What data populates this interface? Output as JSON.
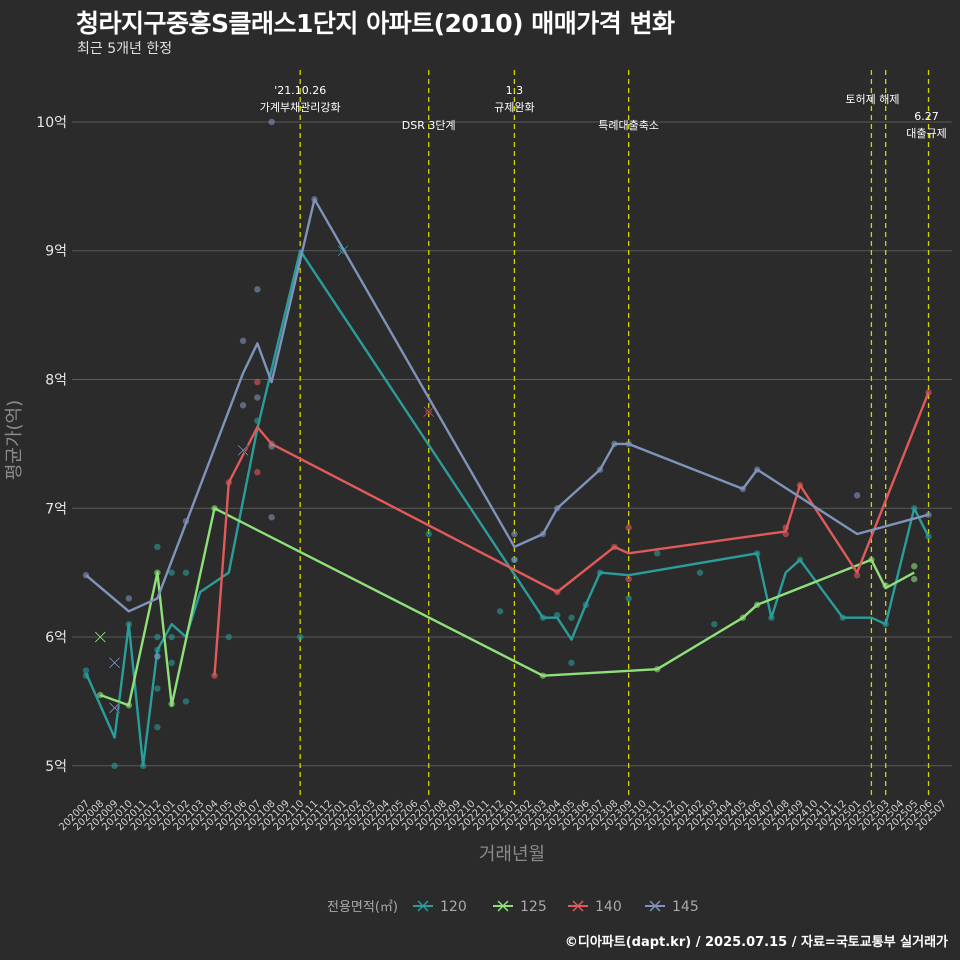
{
  "title": "청라지구중흥S클래스1단지 아파트(2010) 매매가격 변화",
  "subtitle": "최근 5개년 한정",
  "footer": "©디아파트(dapt.kr) / 2025.07.15 / 자료=국토교통부 실거래가",
  "colors": {
    "background": "#2b2b2b",
    "grid": "#5a5a5a",
    "event_line": "#d4d400",
    "s120": "#2a9d9a",
    "s125": "#8ee07a",
    "s140": "#e05a5a",
    "s145": "#7f93bb"
  },
  "chart_data": {
    "type": "line",
    "xlabel": "거래년월",
    "ylabel": "평균가(억)",
    "ylim": [
      4.75,
      10.45
    ],
    "y_ticks": [
      5,
      6,
      7,
      8,
      9,
      10
    ],
    "y_tick_labels": [
      "5억",
      "6억",
      "7억",
      "8억",
      "9억",
      "10억"
    ],
    "x": [
      "202007",
      "202008",
      "202009",
      "202010",
      "202011",
      "202012",
      "202101",
      "202102",
      "202103",
      "202104",
      "202105",
      "202106",
      "202107",
      "202108",
      "202109",
      "202110",
      "202111",
      "202112",
      "202201",
      "202202",
      "202203",
      "202204",
      "202205",
      "202206",
      "202207",
      "202208",
      "202209",
      "202210",
      "202211",
      "202212",
      "202301",
      "202302",
      "202303",
      "202304",
      "202305",
      "202306",
      "202307",
      "202308",
      "202309",
      "202310",
      "202311",
      "202312",
      "202401",
      "202402",
      "202403",
      "202404",
      "202405",
      "202406",
      "202407",
      "202408",
      "202409",
      "202410",
      "202411",
      "202412",
      "202501",
      "202502",
      "202503",
      "202504",
      "202505",
      "202506",
      "202507"
    ],
    "legend": {
      "title": "전용면적(㎡)",
      "placement": "bottom",
      "items": [
        "120",
        "125",
        "140",
        "145"
      ]
    },
    "events": [
      {
        "x": "202110",
        "lines": [
          "'21.10.26",
          "가계부채관리강화"
        ]
      },
      {
        "x": "202207",
        "lines": [
          "DSR 3단계"
        ]
      },
      {
        "x": "202301",
        "lines": [
          "1.3",
          "규제완화"
        ]
      },
      {
        "x": "202309",
        "lines": [
          "특례대출축소"
        ]
      },
      {
        "x": "202502",
        "lines": [
          "토허제 해제"
        ]
      },
      {
        "x": "202503",
        "lines": [
          ""
        ]
      },
      {
        "x": "202506",
        "lines": [
          "6.27",
          "대출규제"
        ]
      }
    ],
    "series": [
      {
        "name": "120",
        "color_key": "s120",
        "line": [
          [
            "202007",
            5.72
          ],
          [
            "202009",
            5.22
          ],
          [
            "202010",
            6.1
          ],
          [
            "202011",
            5.0
          ],
          [
            "202012",
            5.9
          ],
          [
            "202101",
            6.1
          ],
          [
            "202102",
            6.0
          ],
          [
            "202103",
            6.35
          ],
          [
            "202105",
            6.5
          ],
          [
            "202107",
            7.62
          ],
          [
            "202110",
            9.0
          ],
          [
            "202303",
            6.15
          ],
          [
            "202304",
            6.15
          ],
          [
            "202305",
            5.98
          ],
          [
            "202306",
            6.25
          ],
          [
            "202307",
            6.5
          ],
          [
            "202309",
            6.48
          ],
          [
            "202406",
            6.65
          ],
          [
            "202407",
            6.15
          ],
          [
            "202408",
            6.5
          ],
          [
            "202409",
            6.6
          ],
          [
            "202412",
            6.15
          ],
          [
            "202502",
            6.15
          ],
          [
            "202503",
            6.1
          ],
          [
            "202505",
            7.0
          ],
          [
            "202506",
            6.78
          ]
        ],
        "points": [
          [
            "202007",
            5.74
          ],
          [
            "202007",
            5.7
          ],
          [
            "202009",
            5.0
          ],
          [
            "202010",
            6.1
          ],
          [
            "202011",
            5.0
          ],
          [
            "202012",
            5.3
          ],
          [
            "202012",
            5.6
          ],
          [
            "202012",
            5.85
          ],
          [
            "202012",
            5.9
          ],
          [
            "202012",
            6.0
          ],
          [
            "202012",
            6.7
          ],
          [
            "202101",
            5.8
          ],
          [
            "202101",
            6.0
          ],
          [
            "202101",
            6.5
          ],
          [
            "202102",
            5.5
          ],
          [
            "202102",
            6.5
          ],
          [
            "202105",
            6.0
          ],
          [
            "202107",
            7.68
          ],
          [
            "202110",
            6.0
          ],
          [
            "202201",
            9.0
          ],
          [
            "202207",
            6.8
          ],
          [
            "202212",
            6.2
          ],
          [
            "202301",
            6.6
          ],
          [
            "202303",
            6.15
          ],
          [
            "202304",
            6.17
          ],
          [
            "202305",
            5.8
          ],
          [
            "202305",
            6.15
          ],
          [
            "202306",
            6.25
          ],
          [
            "202307",
            6.5
          ],
          [
            "202309",
            6.3
          ],
          [
            "202311",
            6.65
          ],
          [
            "202402",
            6.5
          ],
          [
            "202403",
            6.1
          ],
          [
            "202406",
            6.65
          ],
          [
            "202407",
            6.15
          ],
          [
            "202409",
            6.6
          ],
          [
            "202412",
            6.15
          ],
          [
            "202503",
            6.1
          ],
          [
            "202505",
            7.0
          ],
          [
            "202506",
            6.78
          ]
        ],
        "crosses": [
          [
            "202008",
            6.0
          ],
          [
            "202201",
            9.0
          ]
        ]
      },
      {
        "name": "125",
        "color_key": "s125",
        "line": [
          [
            "202008",
            5.55
          ],
          [
            "202010",
            5.47
          ],
          [
            "202012",
            6.5
          ],
          [
            "202101",
            5.47
          ],
          [
            "202104",
            7.0
          ],
          [
            "202303",
            5.7
          ],
          [
            "202311",
            5.75
          ],
          [
            "202405",
            6.15
          ],
          [
            "202406",
            6.25
          ],
          [
            "202502",
            6.6
          ],
          [
            "202503",
            6.38
          ],
          [
            "202505",
            6.5
          ]
        ],
        "points": [
          [
            "202008",
            5.55
          ],
          [
            "202010",
            5.47
          ],
          [
            "202012",
            6.5
          ],
          [
            "202101",
            5.48
          ],
          [
            "202104",
            7.0
          ],
          [
            "202303",
            5.7
          ],
          [
            "202311",
            5.75
          ],
          [
            "202405",
            6.15
          ],
          [
            "202406",
            6.25
          ],
          [
            "202502",
            6.6
          ],
          [
            "202503",
            6.4
          ],
          [
            "202505",
            6.45
          ],
          [
            "202505",
            6.55
          ]
        ],
        "crosses": [
          [
            "202008",
            6.0
          ],
          [
            "202009",
            5.8
          ]
        ]
      },
      {
        "name": "140",
        "color_key": "s140",
        "line": [
          [
            "202104",
            5.7
          ],
          [
            "202105",
            7.2
          ],
          [
            "202107",
            7.63
          ],
          [
            "202108",
            7.5
          ],
          [
            "202304",
            6.35
          ],
          [
            "202308",
            6.7
          ],
          [
            "202309",
            6.65
          ],
          [
            "202408",
            6.82
          ],
          [
            "202409",
            7.18
          ],
          [
            "202501",
            6.5
          ],
          [
            "202506",
            7.9
          ]
        ],
        "points": [
          [
            "202104",
            5.7
          ],
          [
            "202105",
            7.2
          ],
          [
            "202107",
            7.28
          ],
          [
            "202107",
            7.98
          ],
          [
            "202108",
            7.5
          ],
          [
            "202207",
            7.75
          ],
          [
            "202304",
            6.35
          ],
          [
            "202308",
            6.7
          ],
          [
            "202309",
            6.45
          ],
          [
            "202309",
            6.85
          ],
          [
            "202408",
            6.8
          ],
          [
            "202408",
            6.85
          ],
          [
            "202409",
            7.18
          ],
          [
            "202501",
            6.48
          ],
          [
            "202506",
            7.9
          ]
        ],
        "crosses": [
          [
            "202207",
            7.75
          ]
        ]
      },
      {
        "name": "145",
        "color_key": "s145",
        "line": [
          [
            "202007",
            6.48
          ],
          [
            "202010",
            6.2
          ],
          [
            "202012",
            6.3
          ],
          [
            "202106",
            8.05
          ],
          [
            "202107",
            8.28
          ],
          [
            "202108",
            7.98
          ],
          [
            "202111",
            9.4
          ],
          [
            "202301",
            6.7
          ],
          [
            "202303",
            6.8
          ],
          [
            "202304",
            7.0
          ],
          [
            "202307",
            7.3
          ],
          [
            "202308",
            7.5
          ],
          [
            "202309",
            7.5
          ],
          [
            "202405",
            7.15
          ],
          [
            "202406",
            7.3
          ],
          [
            "202501",
            6.8
          ],
          [
            "202506",
            6.95
          ]
        ],
        "points": [
          [
            "202007",
            6.48
          ],
          [
            "202010",
            6.3
          ],
          [
            "202012",
            5.85
          ],
          [
            "202102",
            6.9
          ],
          [
            "202106",
            7.8
          ],
          [
            "202106",
            8.3
          ],
          [
            "202107",
            7.86
          ],
          [
            "202107",
            8.7
          ],
          [
            "202108",
            6.93
          ],
          [
            "202108",
            7.48
          ],
          [
            "202108",
            10.0
          ],
          [
            "202111",
            9.4
          ],
          [
            "202301",
            6.6
          ],
          [
            "202301",
            6.8
          ],
          [
            "202303",
            6.8
          ],
          [
            "202304",
            7.0
          ],
          [
            "202307",
            7.3
          ],
          [
            "202308",
            7.5
          ],
          [
            "202309",
            7.5
          ],
          [
            "202405",
            7.15
          ],
          [
            "202406",
            7.3
          ],
          [
            "202501",
            7.1
          ],
          [
            "202506",
            6.95
          ]
        ],
        "crosses": [
          [
            "202009",
            5.8
          ],
          [
            "202009",
            5.45
          ],
          [
            "202106",
            7.45
          ]
        ]
      }
    ]
  }
}
